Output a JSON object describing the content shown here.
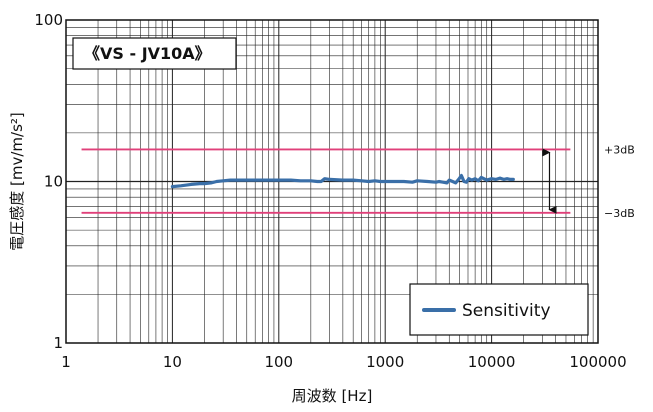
{
  "chart_data": {
    "type": "line",
    "model_label": "《VS - JV10A》",
    "xlabel": "周波数 [Hz]",
    "ylabel": "電圧感度 [mv/m/s²]",
    "x_scale": "log",
    "y_scale": "log",
    "xlim": [
      1,
      100000
    ],
    "ylim": [
      1,
      100
    ],
    "grid": true,
    "x_ticks": [
      {
        "value": 1,
        "label": "1"
      },
      {
        "value": 10,
        "label": "10"
      },
      {
        "value": 100,
        "label": "100"
      },
      {
        "value": 1000,
        "label": "1000"
      },
      {
        "value": 10000,
        "label": "10000"
      },
      {
        "value": 100000,
        "label": "100000"
      }
    ],
    "y_ticks": [
      {
        "value": 1,
        "label": "1"
      },
      {
        "value": 10,
        "label": "10"
      },
      {
        "value": 100,
        "label": "100"
      }
    ],
    "legend": {
      "placement": "bottom-right"
    },
    "series": [
      {
        "name": "Sensitivity",
        "color": "#3a6fa8",
        "x": [
          10,
          12,
          15,
          18,
          20,
          23,
          26,
          30,
          35,
          40,
          50,
          60,
          80,
          100,
          130,
          160,
          200,
          230,
          250,
          270,
          300,
          400,
          500,
          600,
          700,
          800,
          900,
          1000,
          1200,
          1500,
          1800,
          2000,
          2500,
          3000,
          3200,
          3500,
          3800,
          4000,
          4300,
          4600,
          4900,
          5200,
          5500,
          5800,
          6100,
          6500,
          7000,
          7500,
          8000,
          9000,
          10000,
          11000,
          12000,
          13000,
          14000,
          15000,
          16000
        ],
        "y": [
          9.3,
          9.4,
          9.6,
          9.7,
          9.7,
          9.8,
          10.0,
          10.1,
          10.2,
          10.2,
          10.2,
          10.2,
          10.2,
          10.2,
          10.2,
          10.1,
          10.1,
          10.0,
          10.0,
          10.4,
          10.3,
          10.2,
          10.2,
          10.1,
          10.0,
          10.1,
          10.0,
          10.0,
          10.0,
          10.0,
          9.9,
          10.1,
          10.0,
          9.9,
          10.0,
          9.9,
          9.8,
          10.2,
          10.0,
          9.8,
          10.3,
          10.9,
          10.0,
          9.9,
          10.4,
          10.2,
          10.4,
          10.1,
          10.6,
          10.2,
          10.4,
          10.3,
          10.5,
          10.3,
          10.4,
          10.3,
          10.3
        ]
      }
    ],
    "reference_lines": [
      {
        "label": "+3dB",
        "y": 15.8,
        "color": "#e0407a"
      },
      {
        "label": "−3dB",
        "y": 6.4,
        "color": "#e0407a"
      }
    ],
    "range_arrow": {
      "from": 15.8,
      "to": 6.4
    }
  }
}
